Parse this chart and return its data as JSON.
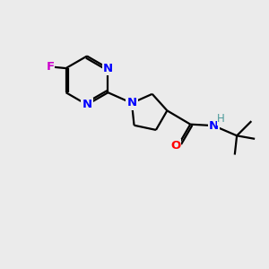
{
  "background_color": "#ebebeb",
  "atom_colors": {
    "N": "#0000ff",
    "O": "#ff0000",
    "F": "#cc00cc",
    "H": "#4a9999"
  },
  "bond_color": "#000000",
  "bond_width": 1.6,
  "figsize": [
    3.0,
    3.0
  ],
  "dpi": 100
}
